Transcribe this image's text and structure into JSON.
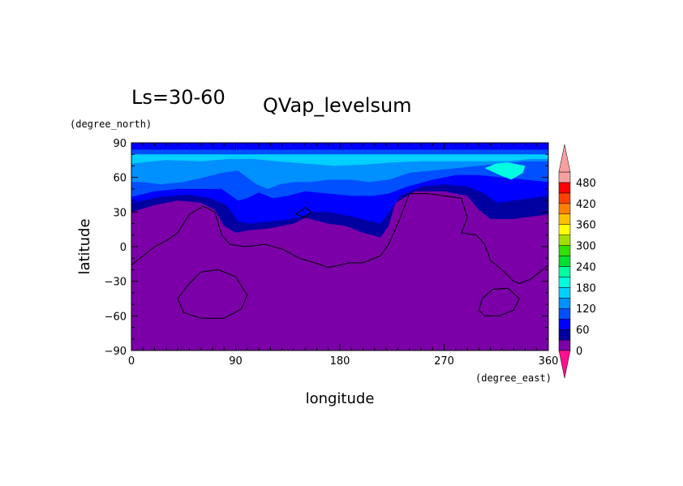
{
  "chart_data": {
    "type": "heatmap",
    "annotation": "Ls=30-60",
    "title": "QVap_levelsum",
    "xlabel": "longitude",
    "ylabel": "latitude",
    "x_unit": "(degree_east)",
    "y_unit": "(degree_north)",
    "xlim": [
      0,
      360
    ],
    "ylim": [
      -90,
      90
    ],
    "x_ticks": [
      "0",
      "90",
      "180",
      "270",
      "360"
    ],
    "y_ticks": [
      "90",
      "60",
      "30",
      "0",
      "-30",
      "-60",
      "-90"
    ],
    "x_tick_values": [
      0,
      90,
      180,
      270,
      360
    ],
    "y_tick_values": [
      90,
      60,
      30,
      0,
      -30,
      -60,
      -90
    ],
    "colorbar": {
      "labels": [
        "0",
        "60",
        "120",
        "180",
        "240",
        "300",
        "360",
        "420",
        "480"
      ],
      "levels": [
        0,
        30,
        60,
        90,
        120,
        150,
        180,
        210,
        240,
        270,
        300,
        330,
        360,
        390,
        420,
        450,
        480,
        510
      ],
      "colors": [
        "#7b00a8",
        "#0000a0",
        "#0000ff",
        "#0050ff",
        "#0090ff",
        "#00d0ff",
        "#00ffe0",
        "#00ffa0",
        "#00e030",
        "#30e000",
        "#a0e000",
        "#ffff00",
        "#ffc000",
        "#ff8000",
        "#ff4000",
        "#ff0000",
        "#f8a0a0"
      ],
      "under_color": "#ff1090",
      "over_color": "#f8a0a0"
    },
    "contours": [
      {
        "level": 0,
        "color": "#7b00a8",
        "points": [
          [
            0,
            -90
          ],
          [
            360,
            -90
          ],
          [
            360,
            90
          ],
          [
            0,
            90
          ]
        ]
      },
      {
        "level": 30,
        "color": "#0000a0",
        "points": [
          [
            0,
            30
          ],
          [
            20,
            36
          ],
          [
            40,
            40
          ],
          [
            60,
            38
          ],
          [
            72,
            32
          ],
          [
            80,
            18
          ],
          [
            90,
            12
          ],
          [
            100,
            14
          ],
          [
            120,
            16
          ],
          [
            140,
            20
          ],
          [
            150,
            25
          ],
          [
            170,
            20
          ],
          [
            185,
            18
          ],
          [
            200,
            12
          ],
          [
            215,
            8
          ],
          [
            222,
            18
          ],
          [
            228,
            38
          ],
          [
            245,
            48
          ],
          [
            270,
            48
          ],
          [
            290,
            44
          ],
          [
            300,
            32
          ],
          [
            310,
            24
          ],
          [
            330,
            24
          ],
          [
            345,
            26
          ],
          [
            360,
            28
          ],
          [
            360,
            90
          ],
          [
            0,
            90
          ]
        ]
      },
      {
        "level": 60,
        "color": "#0000ff",
        "points": [
          [
            0,
            38
          ],
          [
            25,
            43
          ],
          [
            50,
            45
          ],
          [
            68,
            42
          ],
          [
            82,
            36
          ],
          [
            92,
            22
          ],
          [
            102,
            20
          ],
          [
            122,
            22
          ],
          [
            145,
            25
          ],
          [
            155,
            30
          ],
          [
            170,
            30
          ],
          [
            190,
            26
          ],
          [
            215,
            20
          ],
          [
            224,
            32
          ],
          [
            232,
            44
          ],
          [
            250,
            52
          ],
          [
            270,
            54
          ],
          [
            290,
            52
          ],
          [
            305,
            46
          ],
          [
            315,
            38
          ],
          [
            330,
            40
          ],
          [
            345,
            42
          ],
          [
            360,
            44
          ],
          [
            360,
            90
          ],
          [
            0,
            90
          ]
        ]
      },
      {
        "level": 90,
        "color": "#0050ff",
        "points": [
          [
            0,
            43
          ],
          [
            20,
            48
          ],
          [
            40,
            50
          ],
          [
            62,
            50
          ],
          [
            78,
            50
          ],
          [
            92,
            40
          ],
          [
            100,
            42
          ],
          [
            110,
            47
          ],
          [
            122,
            42
          ],
          [
            135,
            44
          ],
          [
            150,
            48
          ],
          [
            170,
            46
          ],
          [
            190,
            44
          ],
          [
            208,
            44
          ],
          [
            222,
            46
          ],
          [
            238,
            52
          ],
          [
            260,
            58
          ],
          [
            280,
            62
          ],
          [
            300,
            62
          ],
          [
            320,
            60
          ],
          [
            340,
            58
          ],
          [
            360,
            56
          ],
          [
            360,
            90
          ],
          [
            0,
            90
          ]
        ]
      },
      {
        "level": 120,
        "color": "#0090ff",
        "points": [
          [
            0,
            56
          ],
          [
            10,
            56
          ],
          [
            25,
            54
          ],
          [
            45,
            56
          ],
          [
            62,
            60
          ],
          [
            78,
            64
          ],
          [
            92,
            66
          ],
          [
            100,
            60
          ],
          [
            108,
            54
          ],
          [
            118,
            50
          ],
          [
            128,
            54
          ],
          [
            140,
            56
          ],
          [
            155,
            56
          ],
          [
            170,
            58
          ],
          [
            190,
            58
          ],
          [
            205,
            56
          ],
          [
            222,
            58
          ],
          [
            240,
            64
          ],
          [
            260,
            66
          ],
          [
            280,
            68
          ],
          [
            300,
            70
          ],
          [
            320,
            72
          ],
          [
            340,
            74
          ],
          [
            360,
            74
          ],
          [
            360,
            90
          ],
          [
            0,
            90
          ]
        ]
      },
      {
        "level": 150,
        "color": "#00d0ff",
        "points": [
          [
            0,
            72
          ],
          [
            30,
            75
          ],
          [
            60,
            74
          ],
          [
            85,
            76
          ],
          [
            105,
            76
          ],
          [
            125,
            74
          ],
          [
            150,
            72
          ],
          [
            175,
            70
          ],
          [
            200,
            71
          ],
          [
            225,
            73
          ],
          [
            250,
            74
          ],
          [
            275,
            74
          ],
          [
            300,
            74
          ],
          [
            325,
            74
          ],
          [
            345,
            76
          ],
          [
            360,
            76
          ],
          [
            360,
            90
          ],
          [
            0,
            90
          ]
        ]
      },
      {
        "level": 180,
        "color": "#00ffe0",
        "points": [
          [
            305,
            68
          ],
          [
            315,
            72
          ],
          [
            325,
            73
          ],
          [
            340,
            70
          ],
          [
            338,
            64
          ],
          [
            328,
            58
          ],
          [
            318,
            62
          ]
        ]
      },
      {
        "level": 60,
        "color": "#0000ff",
        "points": [
          [
            0,
            84
          ],
          [
            360,
            84
          ],
          [
            360,
            90
          ],
          [
            0,
            90
          ]
        ]
      },
      {
        "level": 90,
        "color": "#0050ff",
        "points": [
          [
            0,
            80
          ],
          [
            360,
            80
          ],
          [
            360,
            84
          ],
          [
            0,
            84
          ]
        ]
      }
    ],
    "coastlines": [
      [
        [
          0,
          -16
        ],
        [
          10,
          -8
        ],
        [
          20,
          0
        ],
        [
          30,
          5
        ],
        [
          40,
          12
        ],
        [
          50,
          28
        ],
        [
          62,
          35
        ],
        [
          72,
          30
        ],
        [
          78,
          10
        ],
        [
          85,
          2
        ],
        [
          98,
          0
        ],
        [
          115,
          2
        ],
        [
          130,
          -2
        ],
        [
          145,
          -10
        ],
        [
          158,
          -14
        ],
        [
          170,
          -18
        ],
        [
          180,
          -16
        ],
        [
          188,
          -14
        ],
        [
          200,
          -14
        ],
        [
          215,
          -8
        ],
        [
          222,
          2
        ],
        [
          230,
          20
        ],
        [
          240,
          46
        ],
        [
          255,
          46
        ],
        [
          270,
          44
        ],
        [
          285,
          42
        ],
        [
          290,
          25
        ],
        [
          285,
          12
        ],
        [
          298,
          10
        ],
        [
          305,
          2
        ],
        [
          310,
          -12
        ],
        [
          320,
          -20
        ],
        [
          330,
          -30
        ],
        [
          335,
          -32
        ],
        [
          345,
          -28
        ],
        [
          360,
          -16
        ]
      ],
      [
        [
          40,
          -45
        ],
        [
          50,
          -32
        ],
        [
          60,
          -22
        ],
        [
          75,
          -20
        ],
        [
          90,
          -26
        ],
        [
          100,
          -42
        ],
        [
          95,
          -54
        ],
        [
          80,
          -62
        ],
        [
          60,
          -62
        ],
        [
          45,
          -57
        ],
        [
          40,
          -45
        ]
      ],
      [
        [
          300,
          -55
        ],
        [
          303,
          -45
        ],
        [
          312,
          -37
        ],
        [
          325,
          -36
        ],
        [
          335,
          -45
        ],
        [
          330,
          -55
        ],
        [
          318,
          -60
        ],
        [
          305,
          -60
        ],
        [
          300,
          -55
        ]
      ],
      [
        [
          142,
          28
        ],
        [
          150,
          25
        ],
        [
          155,
          30
        ],
        [
          150,
          34
        ],
        [
          142,
          28
        ]
      ]
    ]
  }
}
